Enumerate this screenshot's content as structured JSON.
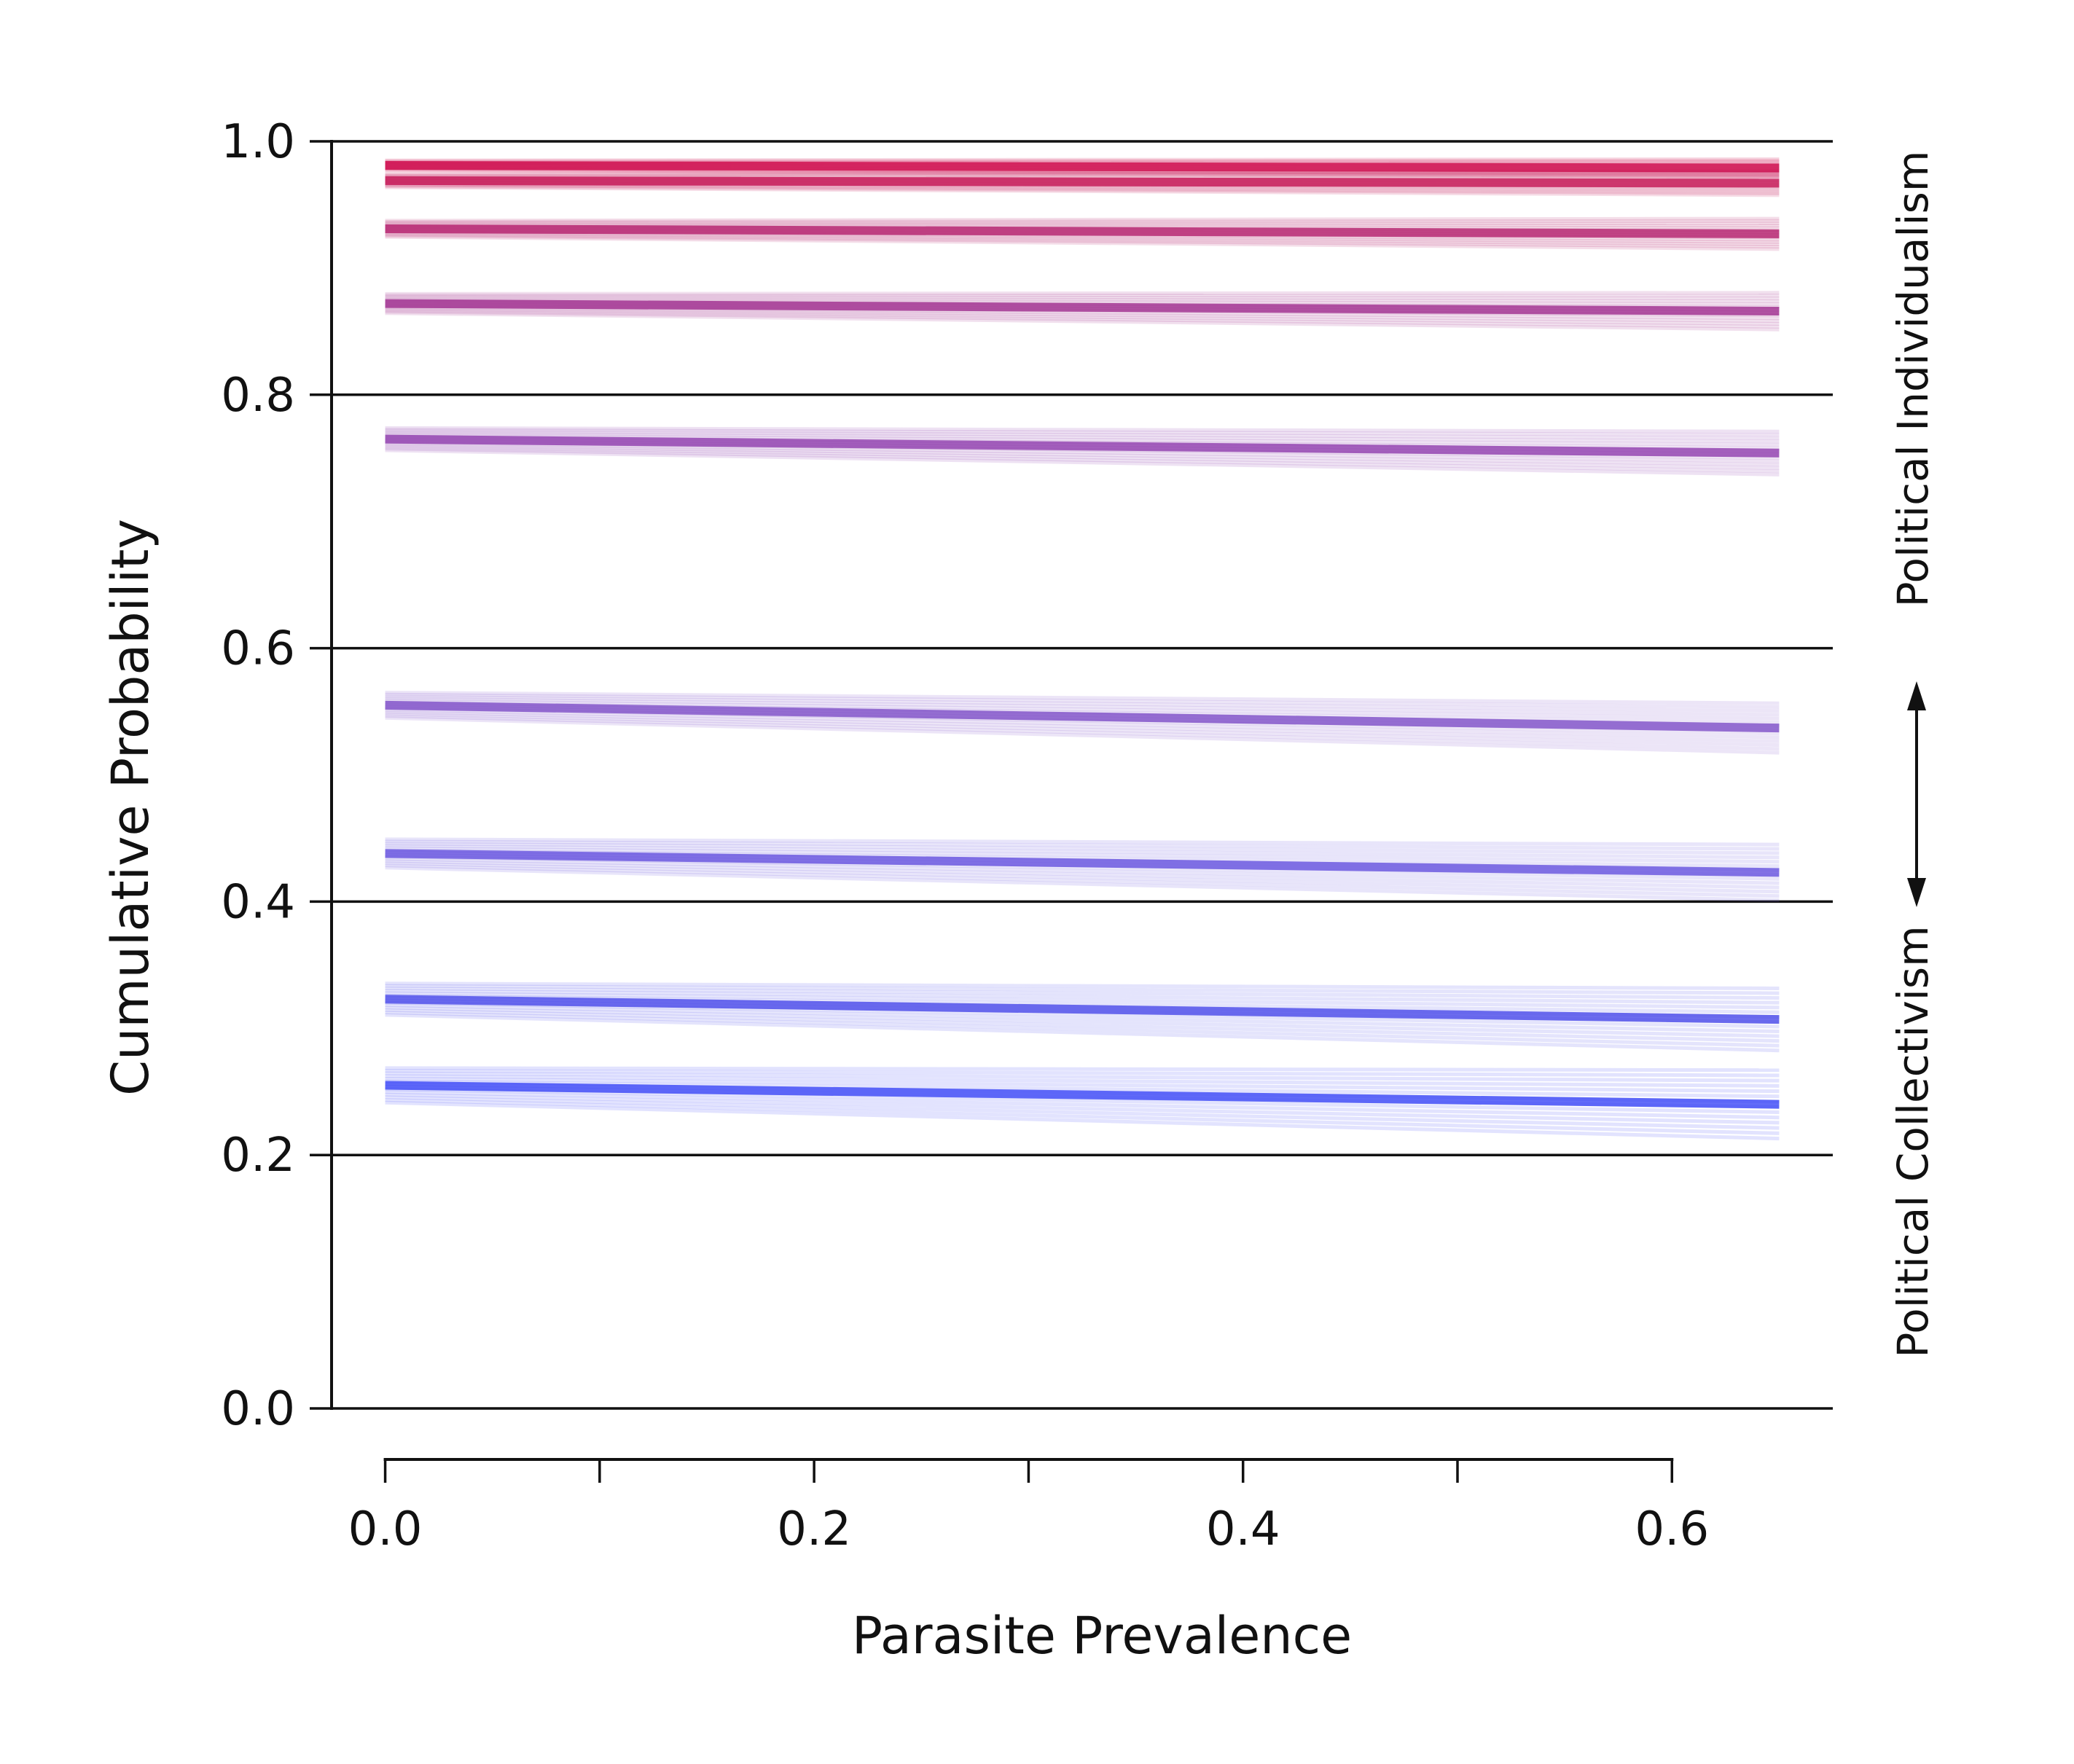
{
  "chart_data": {
    "type": "line",
    "title": "",
    "xlabel": "Parasite Prevalence",
    "ylabel": "Cumulative Probability",
    "xlim": [
      -0.025,
      0.675
    ],
    "ylim": [
      0,
      1
    ],
    "x_range": [
      0,
      0.65
    ],
    "x_ticks": [
      "0.0",
      "0.2",
      "0.4",
      "0.6"
    ],
    "x_minor_ticks": [
      0.1,
      0.3,
      0.5
    ],
    "y_ticks": [
      "0.0",
      "0.2",
      "0.4",
      "0.6",
      "0.8",
      "1.0"
    ],
    "y_ticks_values": [
      0,
      0.2,
      0.4,
      0.6,
      0.8,
      1.0
    ],
    "grid": "horizontal",
    "annotations": {
      "top": "Political Individualism",
      "bottom": "Political Collectivism",
      "arrow": "double-headed vertical"
    },
    "series": [
      {
        "color": "#cc0044",
        "start": 0.981,
        "end": 0.979
      },
      {
        "color": "#c20a4c",
        "start": 0.969,
        "end": 0.967
      },
      {
        "color": "#b01466",
        "start": 0.931,
        "end": 0.927
      },
      {
        "color": "#9a2288",
        "start": 0.872,
        "end": 0.866
      },
      {
        "color": "#8a33aa",
        "start": 0.765,
        "end": 0.754
      },
      {
        "color": "#7744c4",
        "start": 0.555,
        "end": 0.537
      },
      {
        "color": "#5c47dc",
        "start": 0.438,
        "end": 0.423
      },
      {
        "color": "#3f3fe8",
        "start": 0.323,
        "end": 0.307
      },
      {
        "color": "#2f3cf5",
        "start": 0.255,
        "end": 0.24
      }
    ]
  }
}
